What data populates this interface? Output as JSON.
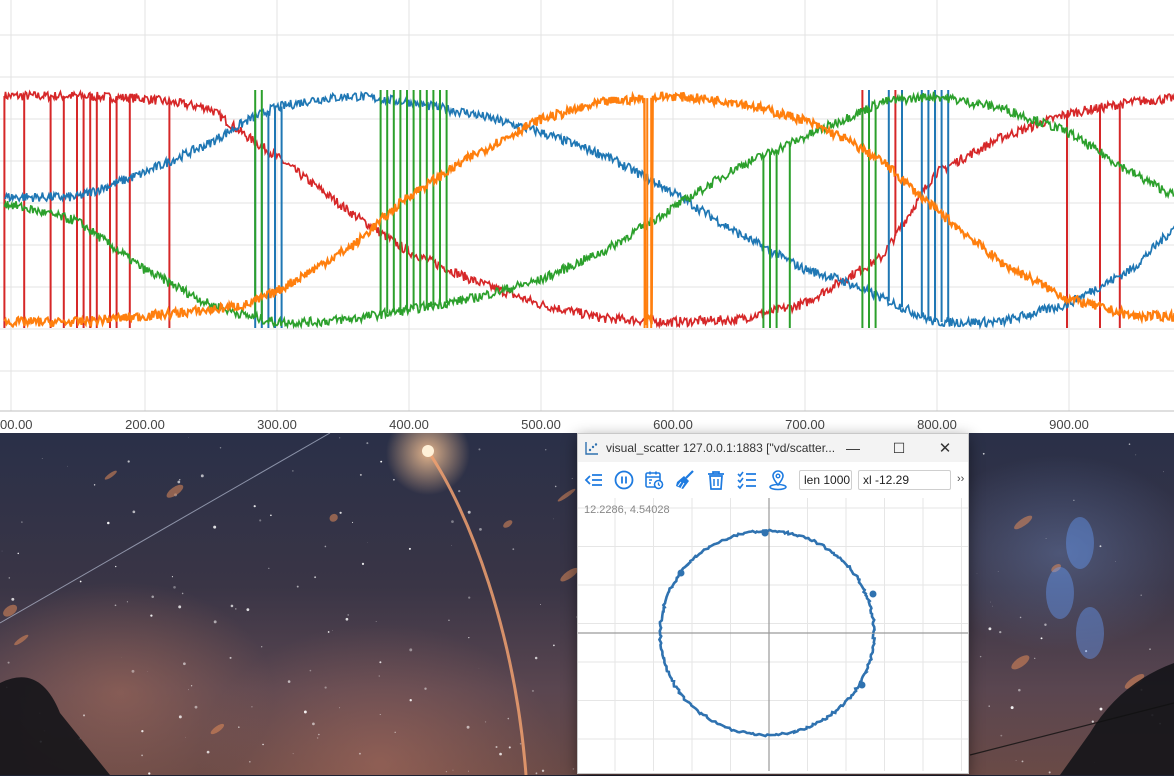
{
  "main_chart": {
    "x_tick_labels": [
      "00.00",
      "200.00",
      "300.00",
      "400.00",
      "500.00",
      "600.00",
      "700.00",
      "800.00",
      "900.00"
    ],
    "series_colors": [
      "#d62728",
      "#1f77b4",
      "#2ca02c",
      "#ff7f0e"
    ]
  },
  "popup": {
    "title": "visual_scatter 127.0.0.1:1883 [\"vd/scatter...",
    "window_controls": {
      "minimize": "—",
      "maximize": "☐",
      "close": "✕"
    },
    "toolbar": {
      "icons": [
        "collapse-left-icon",
        "pause-icon",
        "calendar-clock-icon",
        "broom-icon",
        "trash-icon",
        "checklist-icon",
        "location-pin-icon"
      ],
      "len_value": "len 1000",
      "xl_value": "xl -12.29",
      "overflow_label": "››"
    },
    "coordinate_readout": "12.2286, 4.54028",
    "scatter_color": "#2f72b0"
  },
  "chart_data": [
    {
      "type": "line",
      "title": "",
      "xlabel": "",
      "ylabel": "",
      "x_tick_labels": [
        "00.00",
        "200.00",
        "300.00",
        "400.00",
        "500.00",
        "600.00",
        "700.00",
        "800.00",
        "900.00"
      ],
      "xlim": [
        95,
        1000
      ],
      "ylim": [
        -1,
        1
      ],
      "grid": true,
      "series": [
        {
          "color": "#d62728",
          "x": [
            95,
            150,
            200,
            250,
            280,
            300,
            330,
            360,
            400,
            450,
            500,
            550,
            600,
            650,
            700,
            730,
            760,
            800,
            850,
            900,
            950,
            1000
          ],
          "values": [
            0.95,
            0.95,
            0.93,
            0.85,
            0.6,
            0.45,
            0.2,
            -0.05,
            -0.35,
            -0.6,
            -0.8,
            -0.92,
            -0.95,
            -0.93,
            -0.8,
            -0.6,
            -0.4,
            0.3,
            0.6,
            0.8,
            0.9,
            0.95
          ]
        },
        {
          "color": "#1f77b4",
          "x": [
            95,
            150,
            200,
            250,
            280,
            300,
            330,
            360,
            400,
            450,
            500,
            550,
            600,
            650,
            700,
            730,
            760,
            800,
            850,
            900,
            950,
            1000
          ],
          "values": [
            0.1,
            0.1,
            0.3,
            0.55,
            0.75,
            0.85,
            0.92,
            0.95,
            0.9,
            0.8,
            0.65,
            0.45,
            0.15,
            -0.2,
            -0.5,
            -0.6,
            -0.75,
            -0.95,
            -0.95,
            -0.8,
            -0.5,
            0.05
          ]
        },
        {
          "color": "#2ca02c",
          "x": [
            95,
            150,
            200,
            250,
            280,
            300,
            330,
            360,
            400,
            450,
            500,
            550,
            600,
            650,
            700,
            730,
            760,
            800,
            850,
            900,
            950,
            1000
          ],
          "values": [
            0.05,
            -0.1,
            -0.5,
            -0.8,
            -0.9,
            -0.95,
            -0.95,
            -0.92,
            -0.85,
            -0.75,
            -0.6,
            -0.35,
            0.0,
            0.35,
            0.6,
            0.75,
            0.9,
            0.95,
            0.85,
            0.65,
            0.3,
            0.0
          ]
        },
        {
          "color": "#ff7f0e",
          "x": [
            95,
            150,
            200,
            250,
            280,
            300,
            330,
            360,
            400,
            450,
            500,
            550,
            600,
            650,
            700,
            730,
            760,
            800,
            850,
            900,
            950,
            1000
          ],
          "values": [
            -0.95,
            -0.95,
            -0.9,
            -0.85,
            -0.8,
            -0.7,
            -0.5,
            -0.3,
            0.1,
            0.45,
            0.75,
            0.9,
            0.95,
            0.9,
            0.75,
            0.6,
            0.4,
            0.0,
            -0.45,
            -0.75,
            -0.9,
            -0.9
          ]
        }
      ]
    },
    {
      "type": "scatter",
      "title": "",
      "xlabel": "",
      "ylabel": "",
      "xlim": [
        -1.6,
        1.6
      ],
      "ylim": [
        -1.6,
        1.6
      ],
      "grid": true,
      "series": [
        {
          "color": "#2f72b0",
          "shape": "closed-loop",
          "x": [
            1.0,
            0.92,
            0.71,
            0.38,
            0.0,
            -0.38,
            -0.71,
            -0.92,
            -1.0,
            -0.92,
            -0.71,
            -0.38,
            0.0,
            0.38,
            0.71,
            0.92,
            1.0
          ],
          "values": [
            0.0,
            0.38,
            0.71,
            0.92,
            1.0,
            0.92,
            0.71,
            0.38,
            0.0,
            -0.38,
            -0.71,
            -0.92,
            -1.0,
            -0.92,
            -0.71,
            -0.38,
            0.0
          ]
        }
      ]
    }
  ]
}
